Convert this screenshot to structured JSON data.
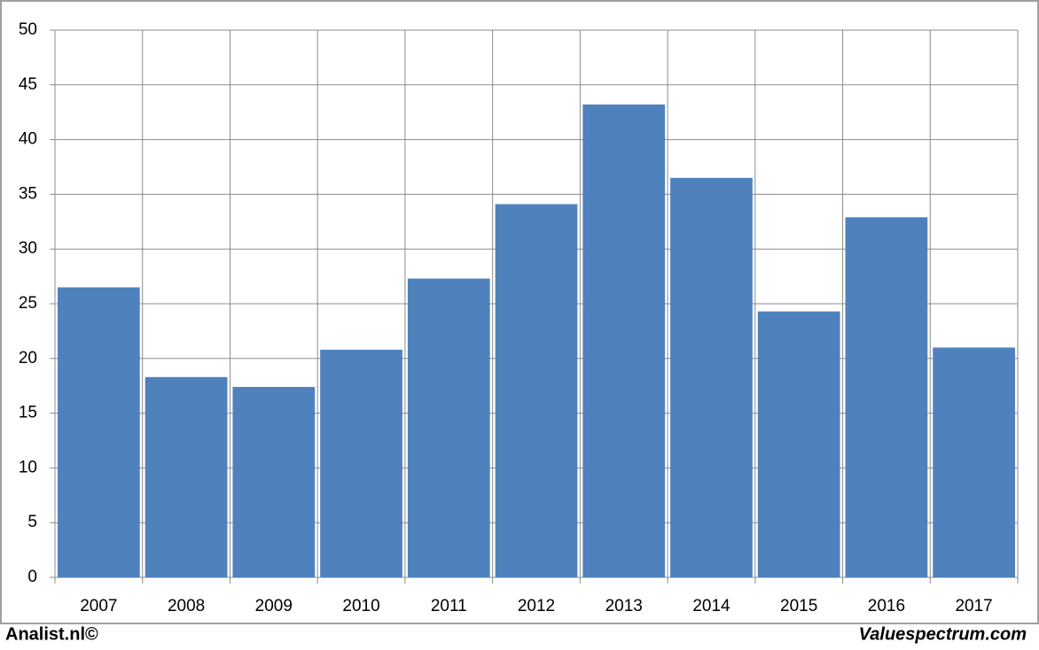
{
  "chart_data": {
    "type": "bar",
    "categories": [
      "2007",
      "2008",
      "2009",
      "2010",
      "2011",
      "2012",
      "2013",
      "2014",
      "2015",
      "2016",
      "2017"
    ],
    "values": [
      26.5,
      18.3,
      17.4,
      20.8,
      27.3,
      34.1,
      43.2,
      36.5,
      24.3,
      32.9,
      21.0
    ],
    "color": "#4f81bd",
    "ylim": [
      0,
      50
    ],
    "yticks": [
      0,
      5,
      10,
      15,
      20,
      25,
      30,
      35,
      40,
      45,
      50
    ],
    "grid": true,
    "annotations": [
      "Analist.nl©",
      "Valuespectrum.com"
    ]
  }
}
